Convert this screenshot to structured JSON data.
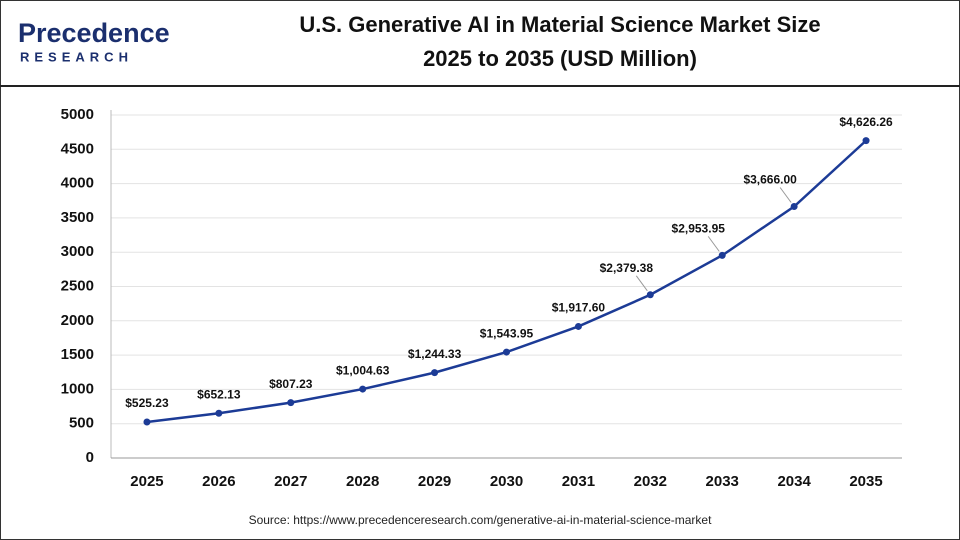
{
  "logo": {
    "name": "Precedence",
    "tagline": "RESEARCH"
  },
  "chart_data": {
    "type": "line",
    "title": "U.S. Generative AI in Material Science Market Size",
    "subtitle": "2025 to 2035 (USD Million)",
    "categories": [
      "2025",
      "2026",
      "2027",
      "2028",
      "2029",
      "2030",
      "2031",
      "2032",
      "2033",
      "2034",
      "2035"
    ],
    "values": [
      525.23,
      652.13,
      807.23,
      1004.63,
      1244.33,
      1543.95,
      1917.6,
      2379.38,
      2953.95,
      3666.0,
      4626.26
    ],
    "value_labels": [
      "$525.23",
      "$652.13",
      "$807.23",
      "$1,004.63",
      "$1,244.33",
      "$1,543.95",
      "$1,917.60",
      "$2,379.38",
      "$2,953.95",
      "$3,666.00",
      "$4,626.26"
    ],
    "color": "#1c3b96",
    "ylim": [
      0,
      5000
    ],
    "yticks": [
      0,
      500,
      1000,
      1500,
      2000,
      2500,
      3000,
      3500,
      4000,
      4500,
      5000
    ],
    "grid": true,
    "source": "Source: https://www.precedenceresearch.com/generative-ai-in-material-science-market"
  }
}
